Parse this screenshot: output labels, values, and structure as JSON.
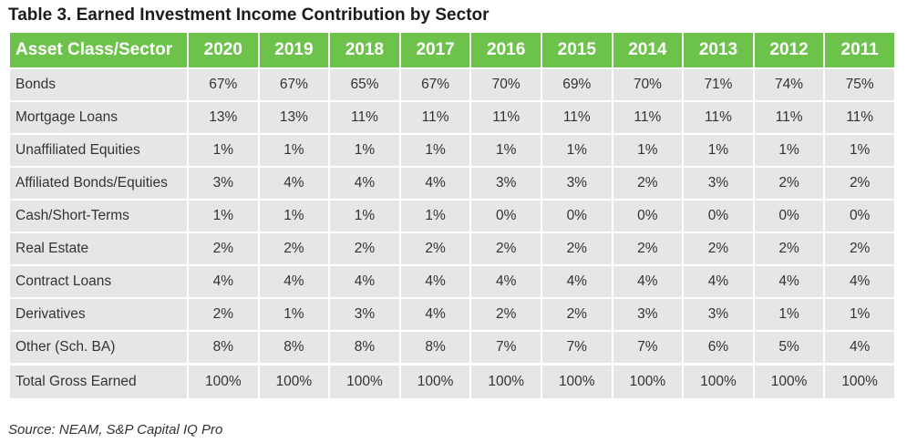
{
  "chart_data": {
    "type": "table",
    "title": "Table 3. Earned Investment Income Contribution by Sector",
    "columns": [
      "Asset Class/Sector",
      "2020",
      "2019",
      "2018",
      "2017",
      "2016",
      "2015",
      "2014",
      "2013",
      "2012",
      "2011"
    ],
    "rows": [
      {
        "label": "Bonds",
        "values": [
          "67%",
          "67%",
          "65%",
          "67%",
          "70%",
          "69%",
          "70%",
          "71%",
          "74%",
          "75%"
        ]
      },
      {
        "label": "Mortgage Loans",
        "values": [
          "13%",
          "13%",
          "11%",
          "11%",
          "11%",
          "11%",
          "11%",
          "11%",
          "11%",
          "11%"
        ]
      },
      {
        "label": "Unaffiliated Equities",
        "values": [
          "1%",
          "1%",
          "1%",
          "1%",
          "1%",
          "1%",
          "1%",
          "1%",
          "1%",
          "1%"
        ]
      },
      {
        "label": "Affiliated Bonds/Equities",
        "values": [
          "3%",
          "4%",
          "4%",
          "4%",
          "3%",
          "3%",
          "2%",
          "3%",
          "2%",
          "2%"
        ]
      },
      {
        "label": "Cash/Short-Terms",
        "values": [
          "1%",
          "1%",
          "1%",
          "1%",
          "0%",
          "0%",
          "0%",
          "0%",
          "0%",
          "0%"
        ]
      },
      {
        "label": "Real Estate",
        "values": [
          "2%",
          "2%",
          "2%",
          "2%",
          "2%",
          "2%",
          "2%",
          "2%",
          "2%",
          "2%"
        ]
      },
      {
        "label": "Contract Loans",
        "values": [
          "4%",
          "4%",
          "4%",
          "4%",
          "4%",
          "4%",
          "4%",
          "4%",
          "4%",
          "4%"
        ]
      },
      {
        "label": "Derivatives",
        "values": [
          "2%",
          "1%",
          "3%",
          "4%",
          "2%",
          "2%",
          "3%",
          "3%",
          "1%",
          "1%"
        ]
      },
      {
        "label": "Other (Sch. BA)",
        "values": [
          "8%",
          "8%",
          "8%",
          "8%",
          "7%",
          "7%",
          "7%",
          "6%",
          "5%",
          "4%"
        ]
      },
      {
        "label": "Total Gross Earned",
        "values": [
          "100%",
          "100%",
          "100%",
          "100%",
          "100%",
          "100%",
          "100%",
          "100%",
          "100%",
          "100%"
        ]
      }
    ],
    "source": "Source: NEAM, S&P Capital IQ Pro",
    "colors": {
      "header": "#6cc24a",
      "cell": "#e6e6e6",
      "text": "#333333"
    }
  }
}
